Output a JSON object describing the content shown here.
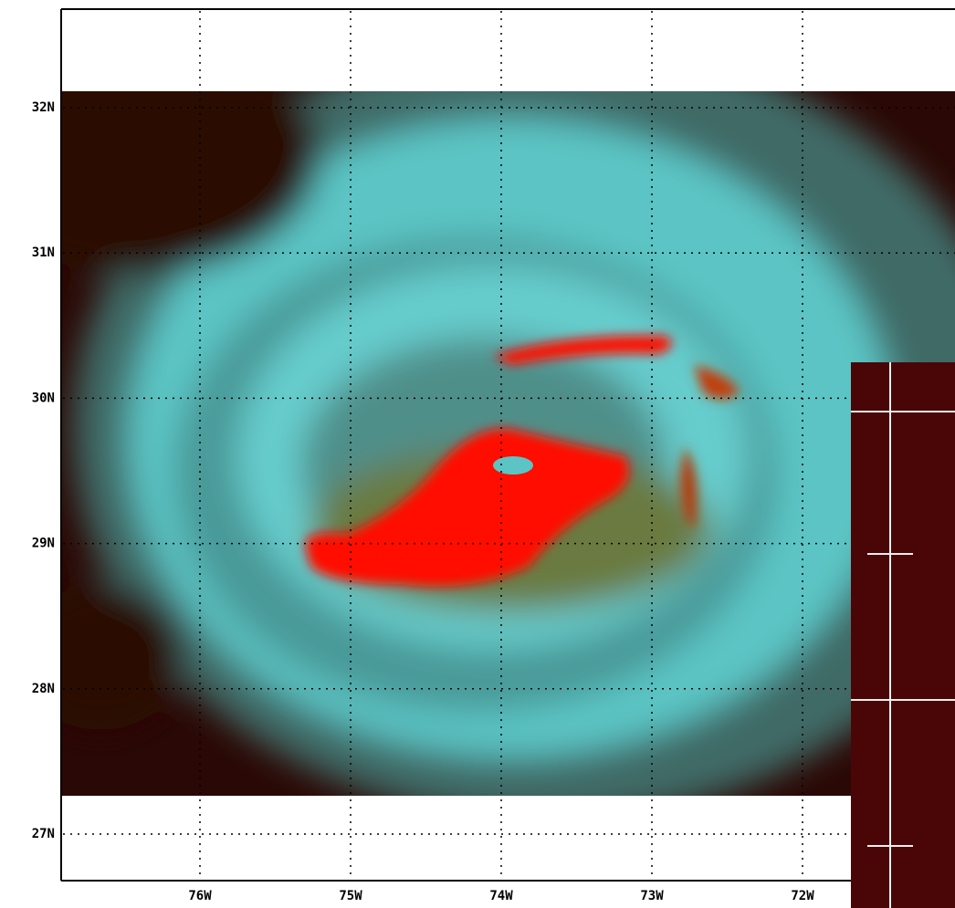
{
  "map": {
    "lat_labels": [
      "32N",
      "31N",
      "30N",
      "29N",
      "28N",
      "27N"
    ],
    "lon_labels": [
      "76W",
      "75W",
      "74W",
      "73W",
      "72W"
    ]
  }
}
